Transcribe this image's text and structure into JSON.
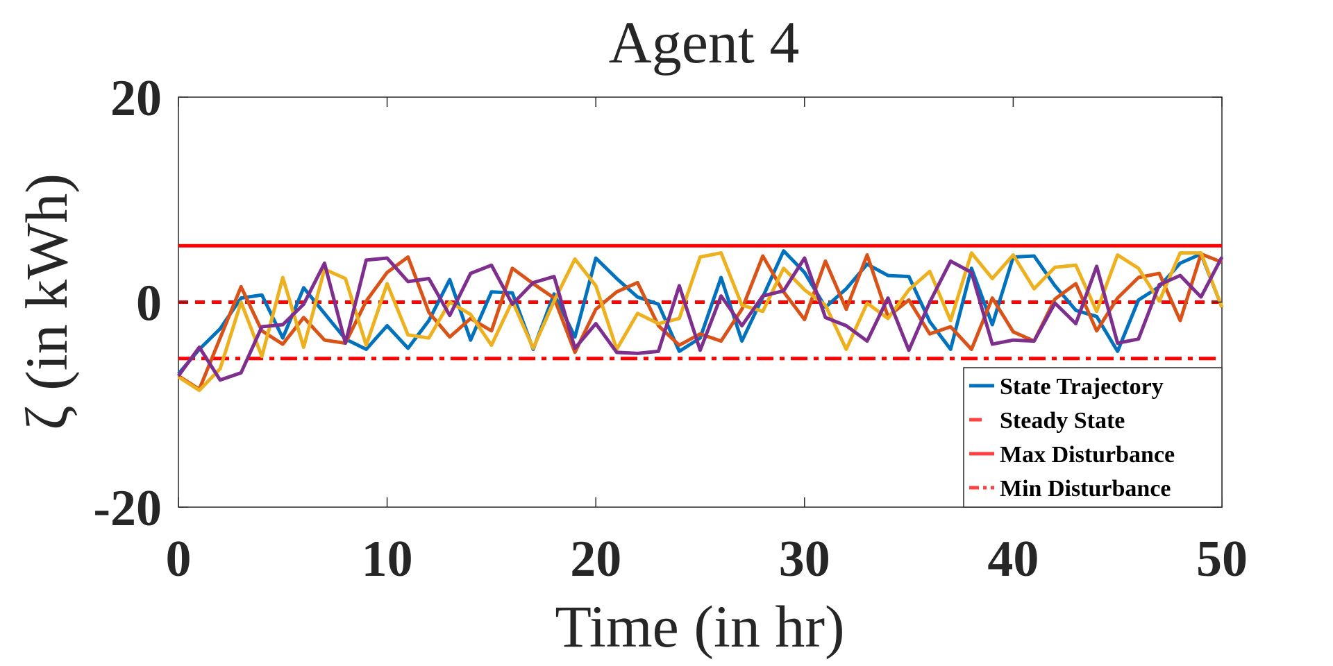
{
  "chart_data": {
    "type": "line",
    "title": "Agent 4",
    "xlabel": "Time (in hr)",
    "ylabel": "ζ (in kWh)",
    "xlim": [
      0,
      50
    ],
    "ylim": [
      -20,
      20
    ],
    "x_ticks": [
      "0",
      "10",
      "20",
      "30",
      "40",
      "50"
    ],
    "y_ticks": [
      "20",
      "0",
      "-20"
    ],
    "x_tick_values": [
      0,
      10,
      20,
      30,
      40,
      50
    ],
    "y_tick_values": [
      20,
      0,
      -20
    ],
    "grid": false,
    "legend_position": "bottom-right",
    "legend": {
      "entries": [
        {
          "label": "State Trajectory",
          "color": "#0072BD",
          "style": "solid"
        },
        {
          "label": "Steady State",
          "color": "#FF0000",
          "style": "dashed"
        },
        {
          "label": "Max Disturbance",
          "color": "#FF0000",
          "style": "solid"
        },
        {
          "label": "Min Disturbance",
          "color": "#FF0000",
          "style": "dashdot"
        }
      ]
    },
    "reference_lines": [
      {
        "role": "steady",
        "y": 0,
        "color": "#FF0000",
        "style": "dashed"
      },
      {
        "role": "max",
        "y": 5.5,
        "color": "#FF0000",
        "style": "solid"
      },
      {
        "role": "min",
        "y": -5.5,
        "color": "#FF0000",
        "style": "dashdot"
      }
    ],
    "x": [
      0,
      1,
      2,
      3,
      4,
      5,
      6,
      7,
      8,
      9,
      10,
      11,
      12,
      13,
      14,
      15,
      16,
      17,
      18,
      19,
      20,
      21,
      22,
      23,
      24,
      25,
      26,
      27,
      28,
      29,
      30,
      31,
      32,
      33,
      34,
      35,
      36,
      37,
      38,
      39,
      40,
      41,
      42,
      43,
      44,
      45,
      46,
      47,
      48,
      49,
      50
    ],
    "series": [
      {
        "color": "#0072BD",
        "values": [
          -7,
          -4.6,
          -2.6,
          0.4,
          0.7,
          -3.5,
          1.4,
          -1.1,
          -3.6,
          -4.6,
          -2.3,
          -4.5,
          -1.8,
          2.2,
          -3.7,
          1,
          0.9,
          -4.6,
          0.8,
          -3.4,
          4.3,
          2.3,
          0.5,
          -0.2,
          -4.8,
          -3.5,
          2.4,
          -3.8,
          0.5,
          5,
          2.9,
          -0.5,
          1.3,
          3.7,
          2.6,
          2.5,
          -1.9,
          -4.6,
          3.3,
          -2.2,
          4.4,
          4.5,
          1.6,
          -0.8,
          -1.4,
          -4.8,
          0.2,
          1.5,
          3.8,
          4.7,
          -0.5
        ]
      },
      {
        "color": "#D95319",
        "values": [
          -7.2,
          -8.5,
          -3.5,
          1.5,
          -2.8,
          -4.1,
          -1.5,
          -3.7,
          -4,
          0.1,
          2.9,
          4.4,
          -1,
          -3.4,
          -1.6,
          -2.8,
          3.3,
          1.8,
          0.4,
          -4.9,
          -0.7,
          1,
          1.9,
          -2.3,
          -4.2,
          -3.1,
          -3.8,
          -0.7,
          4.5,
          1,
          -1.7,
          4,
          -0.7,
          4.6,
          -1.4,
          0.2,
          -3.1,
          -2.4,
          -4.6,
          0.4,
          -2.9,
          -3.8,
          0.3,
          1.8,
          -2.8,
          0.4,
          2.4,
          2.8,
          -1.8,
          4.7,
          3.9
        ]
      },
      {
        "color": "#EDB120",
        "values": [
          -7.3,
          -8.6,
          -6.5,
          0,
          -5.3,
          2.4,
          -4.4,
          3.2,
          2.3,
          -4.2,
          1.8,
          -3.2,
          -3.5,
          0,
          -1.2,
          -4.2,
          0.1,
          -4.5,
          0.1,
          4.2,
          1.6,
          -4.6,
          -1.1,
          -2.1,
          -1.6,
          4.4,
          4.8,
          -0.3,
          -0.9,
          3.3,
          1.2,
          -0.3,
          -4.6,
          -0.1,
          -1.6,
          1.2,
          3,
          -1.8,
          4.8,
          2.3,
          4.6,
          1.3,
          3.4,
          3.6,
          -0.9,
          4.6,
          3.3,
          0.1,
          4.8,
          4.8,
          -0.5
        ]
      },
      {
        "color": "#7E2F8E",
        "values": [
          -7.2,
          -4.4,
          -7.6,
          -6.9,
          -2.4,
          -2.2,
          -0.2,
          3.8,
          -4,
          4.1,
          4.3,
          2,
          2.3,
          -1.3,
          2.8,
          3.6,
          -0.2,
          1.9,
          2.5,
          -4.5,
          -2.1,
          -4.9,
          -5,
          -4.8,
          1.6,
          -4.7,
          0.6,
          -2.3,
          0.6,
          1.1,
          4.3,
          -1.5,
          -2.3,
          -3.8,
          0.4,
          -4.7,
          0,
          4,
          2.9,
          -4.1,
          -3.7,
          -3.8,
          -0.1,
          -2.1,
          3.5,
          -4,
          -3.6,
          1.7,
          2.6,
          0.5,
          4.4
        ]
      }
    ]
  }
}
